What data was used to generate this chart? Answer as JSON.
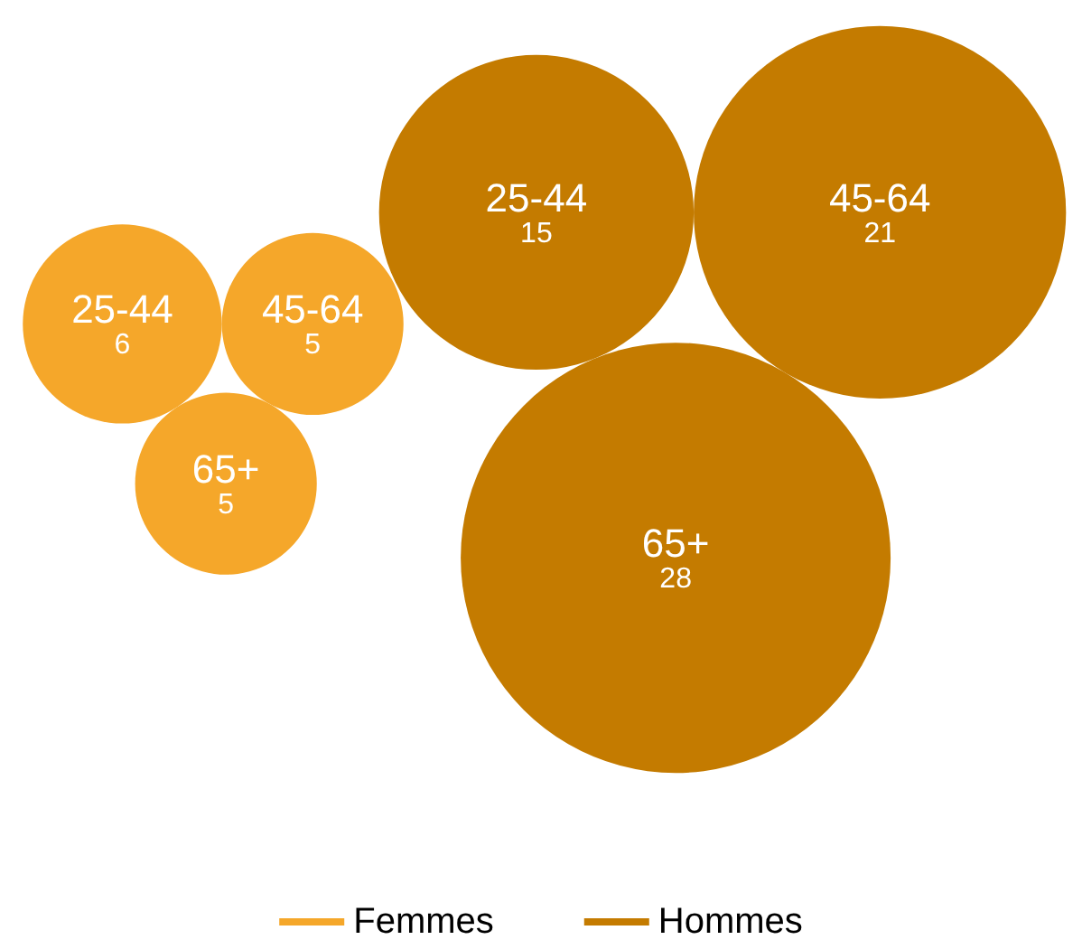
{
  "chart_data": {
    "type": "other",
    "categories": [
      "25-44",
      "45-64",
      "65+"
    ],
    "data_labels": true,
    "legend": "bottom",
    "series": [
      {
        "name": "Femmes",
        "color": "#f5a72a",
        "values": [
          6,
          5,
          5
        ]
      },
      {
        "name": "Hommes",
        "color": "#c47b00",
        "values": [
          15,
          21,
          28
        ]
      }
    ]
  }
}
